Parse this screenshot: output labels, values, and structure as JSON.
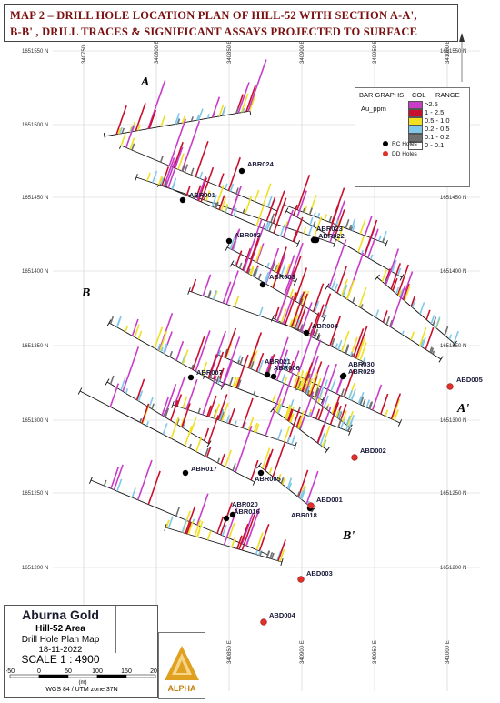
{
  "title": {
    "line1": "MAP 2 – DRILL HOLE LOCATION PLAN OF HILL-52 WITH SECTION A-A',",
    "line2": "B-B' , DRILL TRACES & SIGNIFICANT ASSAYS PROJECTED TO SURFACE"
  },
  "grid": {
    "northings": [
      "1651550 N",
      "1651500 N",
      "1651450 N",
      "1651400 N",
      "1651350 N",
      "1651300 N",
      "1651250 N",
      "1651200 N"
    ],
    "eastings": [
      "340750",
      "340800 E",
      "340850 E",
      "340900 E",
      "340950 E",
      "341000 E"
    ]
  },
  "sections": {
    "a": "A",
    "a_prime": "A'",
    "b": "B",
    "b_prime": "B'"
  },
  "holes": {
    "rc": [
      "ABR024",
      "ABR001",
      "ABR002",
      "ABR023",
      "ABR022",
      "ABR003",
      "ABR004",
      "ABR007",
      "ABR021",
      "ABR006",
      "ABR030",
      "ABR029",
      "ABR017",
      "ABR005",
      "ABR020",
      "ABR016",
      "ABR018"
    ],
    "dd": [
      "ABD005",
      "ABD002",
      "ABD001",
      "ABD003",
      "ABD004"
    ]
  },
  "legend": {
    "bar_graphs": "BAR GRAPHS",
    "col": "COL",
    "range": "RANGE",
    "field": "Au_ppm",
    "ranges": [
      {
        "label": ">2.5",
        "color": "#c83cc8"
      },
      {
        "label": "1 - 2.5",
        "color": "#c8102e"
      },
      {
        "label": "0.5 - 1.0",
        "color": "#f0e020"
      },
      {
        "label": "0.2 - 0.5",
        "color": "#80c8e8"
      },
      {
        "label": "0.1 - 0.2",
        "color": "#707070"
      },
      {
        "label": "0 - 0.1",
        "color": "#ffffff"
      }
    ],
    "rc_label": "RC Holes",
    "dd_label": "DD Holes",
    "rc_color": "#000000",
    "dd_color": "#e0302a"
  },
  "info": {
    "company": "Aburna Gold",
    "area": "Hill-52 Area",
    "map_name": "Drill Hole Plan Map",
    "date": "18-11-2022",
    "scale": "SCALE  1 : 4900",
    "scale_ticks": [
      "-50",
      "0",
      "50",
      "100",
      "150",
      "200"
    ],
    "scale_unit": "(m)",
    "projection": "WGS 84 / UTM zone 37N",
    "logo_text": "ALPHA"
  }
}
